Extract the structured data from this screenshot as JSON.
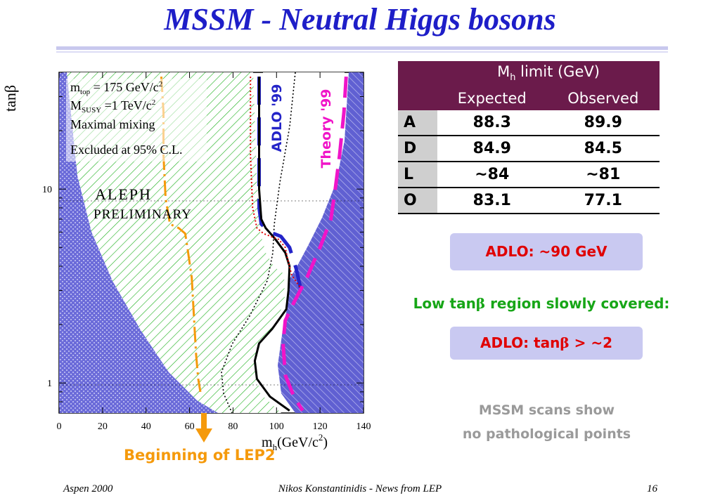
{
  "slide": {
    "title": "MSSM - Neutral Higgs bosons",
    "footer_left": "Aspen 2000",
    "footer_center": "Nikos Konstantinidis - News from LEP",
    "footer_right": "16"
  },
  "chart_data": {
    "type": "line",
    "xlabel_main": "m",
    "xlabel_sub": "h",
    "xlabel_unit": "(GeV/c",
    "xlabel_sup": "2",
    "xlabel_close": ")",
    "ylabel": "tanβ",
    "xlim": [
      0,
      140
    ],
    "ylim": [
      0.7,
      40
    ],
    "yscale": "log",
    "x_ticks": [
      "0",
      "20",
      "40",
      "60",
      "80",
      "100",
      "120",
      "140"
    ],
    "y_ticks": [
      {
        "value": 1,
        "label": "1"
      },
      {
        "value": 10,
        "label": "10"
      }
    ],
    "legend": {
      "line1_main": "m",
      "line1_sub": "top",
      "line1_rest": " = 175 GeV/c",
      "line1_sup": "2",
      "line2_main": "M",
      "line2_sub": "SUSY",
      "line2_rest": " =1 TeV/c",
      "line2_sup": "2",
      "line3": "Maximal mixing",
      "line4": "Excluded at 95% C.L."
    },
    "experiment": "ALEPH",
    "status": "PRELIMINARY",
    "curve_labels": {
      "adlo": "ADLO '99",
      "theory": "Theory '99"
    },
    "annotation": "Beginning of LEP2",
    "series": [
      {
        "name": "ADLO '99",
        "color": "#2424c8",
        "points": [
          [
            92,
            38
          ],
          [
            92,
            30
          ],
          [
            92,
            20
          ],
          [
            92,
            12
          ],
          [
            92,
            8
          ],
          [
            93,
            6.6
          ],
          [
            97,
            6
          ],
          [
            102,
            5.7
          ],
          [
            106,
            5
          ],
          [
            109,
            3.9
          ],
          [
            111,
            3.1
          ]
        ]
      },
      {
        "name": "Theory '99",
        "color": "#f014c8",
        "points": [
          [
            132,
            38
          ],
          [
            131,
            25
          ],
          [
            129,
            15
          ],
          [
            127,
            10
          ],
          [
            125,
            7
          ],
          [
            120,
            5
          ],
          [
            114,
            3.5
          ],
          [
            108,
            2.6
          ],
          [
            104,
            2.1
          ],
          [
            103,
            1.6
          ],
          [
            104,
            1.1
          ],
          [
            108,
            0.85
          ],
          [
            112,
            0.72
          ]
        ]
      },
      {
        "name": "observed",
        "color": "#000000",
        "points": [
          [
            92,
            38
          ],
          [
            92,
            20
          ],
          [
            92,
            10
          ],
          [
            93,
            7
          ],
          [
            95,
            6.3
          ],
          [
            99,
            5.6
          ],
          [
            104,
            4.7
          ],
          [
            106,
            4
          ],
          [
            105.5,
            3
          ],
          [
            104.5,
            2.4
          ],
          [
            98,
            1.9
          ],
          [
            92,
            1.6
          ],
          [
            90,
            1.3
          ],
          [
            91,
            1.05
          ],
          [
            97,
            0.85
          ],
          [
            106,
            0.72
          ]
        ]
      },
      {
        "name": "expected",
        "color": "#e00000",
        "points": [
          [
            88,
            38
          ],
          [
            88,
            25
          ],
          [
            88,
            15
          ],
          [
            89,
            8
          ],
          [
            91,
            6.3
          ],
          [
            94,
            5.9
          ],
          [
            101,
            5.5
          ],
          [
            104,
            5
          ],
          [
            105,
            4.4
          ],
          [
            107,
            3.6
          ],
          [
            111,
            3.1
          ]
        ]
      },
      {
        "name": "LEP2 start",
        "color": "#f59a0c",
        "points": [
          [
            47,
            38
          ],
          [
            48,
            25
          ],
          [
            48,
            15
          ],
          [
            49,
            9
          ],
          [
            51,
            6.6
          ],
          [
            55,
            6.3
          ],
          [
            58,
            5.9
          ],
          [
            59,
            5
          ],
          [
            61,
            3.5
          ],
          [
            62,
            2.2
          ],
          [
            63,
            1.4
          ],
          [
            64,
            1.05
          ],
          [
            65,
            0.9
          ]
        ]
      }
    ]
  },
  "table": {
    "group_header_main": "M",
    "group_header_sub": "h",
    "group_header_rest": " limit (GeV)",
    "col_expected": "Expected",
    "col_observed": "Observed",
    "rows": [
      {
        "label": "A",
        "expected": "88.3",
        "observed": "89.9"
      },
      {
        "label": "D",
        "expected": "84.9",
        "observed": "84.5"
      },
      {
        "label": "L",
        "expected": "~84",
        "observed": "~81"
      },
      {
        "label": "O",
        "expected": "83.1",
        "observed": "77.1"
      }
    ]
  },
  "notes": {
    "adlo_limit": "ADLO: ~90 GeV",
    "low_tanb_pre": "Low tan",
    "low_tanb_beta": "β",
    "low_tanb_post": " region slowly covered:",
    "tanb_pre": "ADLO: tan",
    "tanb_beta": "β",
    "tanb_post": " > ~2",
    "scans_line1": "MSSM scans show",
    "scans_line2": "no pathological points"
  }
}
